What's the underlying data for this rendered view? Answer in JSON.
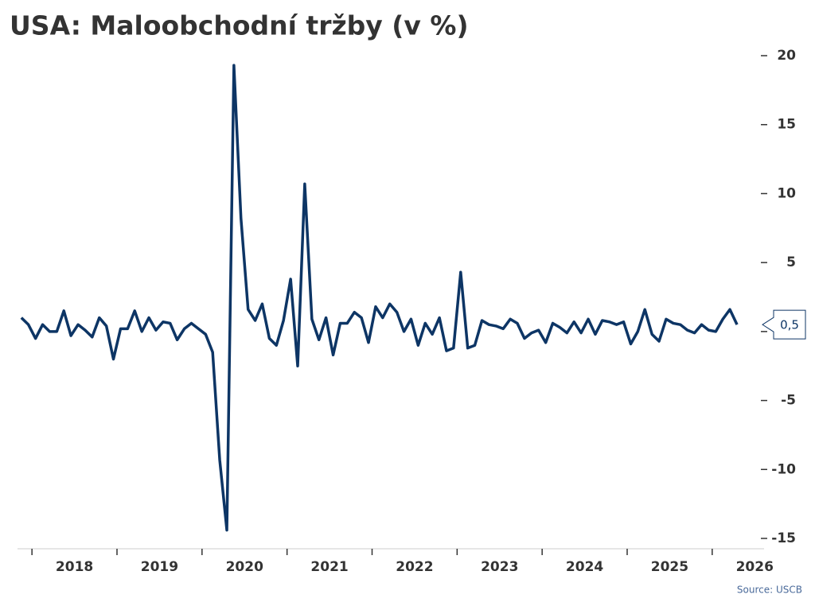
{
  "chart_data": {
    "type": "line",
    "title": "USA: Maloobchodní tržby (v %)",
    "source": "Source: USCB",
    "x": [
      2017.875,
      2017.958,
      2018.042,
      2018.125,
      2018.208,
      2018.292,
      2018.375,
      2018.458,
      2018.542,
      2018.625,
      2018.708,
      2018.792,
      2018.875,
      2018.958,
      2019.042,
      2019.125,
      2019.208,
      2019.292,
      2019.375,
      2019.458,
      2019.542,
      2019.625,
      2019.708,
      2019.792,
      2019.875,
      2019.958,
      2020.042,
      2020.125,
      2020.208,
      2020.292,
      2020.375,
      2020.458,
      2020.542,
      2020.625,
      2020.708,
      2020.792,
      2020.875,
      2020.958,
      2021.042,
      2021.125,
      2021.208,
      2021.292,
      2021.375,
      2021.458,
      2021.542,
      2021.625,
      2021.708,
      2021.792,
      2021.875,
      2021.958,
      2022.042,
      2022.125,
      2022.208,
      2022.292,
      2022.375,
      2022.458,
      2022.542,
      2022.625,
      2022.708,
      2022.792,
      2022.875,
      2022.958,
      2023.042,
      2023.125,
      2023.208,
      2023.292,
      2023.375,
      2023.458,
      2023.542,
      2023.625,
      2023.708,
      2023.792,
      2023.875,
      2023.958,
      2024.042,
      2024.125,
      2024.208,
      2024.292,
      2024.375,
      2024.458,
      2024.542,
      2024.625,
      2024.708,
      2024.792,
      2024.875,
      2024.958,
      2025.042,
      2025.125,
      2025.208,
      2025.292,
      2025.375,
      2025.458,
      2025.542,
      2025.625,
      2025.708,
      2025.792,
      2025.875,
      2025.958,
      2026.042,
      2026.125,
      2026.208,
      2026.292
    ],
    "series": [
      {
        "color": "#0d3565",
        "values": [
          1.0,
          0.5,
          -0.5,
          0.5,
          0,
          0,
          1.5,
          -0.3,
          0.5,
          0.1,
          -0.4,
          1.0,
          0.4,
          -2.0,
          0.2,
          0.2,
          1.5,
          0,
          1.0,
          0.1,
          0.7,
          0.6,
          -0.6,
          0.2,
          0.6,
          0.2,
          -0.2,
          -1.5,
          -9.3,
          -14.4,
          19.3,
          8.2,
          1.6,
          0.8,
          2.0,
          -0.5,
          -1.0,
          0.8,
          3.8,
          -2.5,
          10.7,
          0.9,
          -0.6,
          1.0,
          -1.7,
          0.6,
          0.6,
          1.4,
          1.0,
          -0.8,
          1.8,
          1.0,
          2.0,
          1.4,
          0,
          0.9,
          -1.0,
          0.6,
          -0.2,
          1.0,
          -1.4,
          -1.2,
          4.3,
          -1.2,
          -1.0,
          0.8,
          0.5,
          0.4,
          0.2,
          0.9,
          0.6,
          -0.5,
          -0.1,
          0.1,
          -0.8,
          0.6,
          0.3,
          -0.1,
          0.7,
          -0.1,
          0.9,
          -0.2,
          0.8,
          0.7,
          0.5,
          0.7,
          -0.9,
          0,
          1.6,
          -0.2,
          -0.7,
          0.9,
          0.6,
          0.5,
          0.1,
          -0.1,
          0.5,
          0.1,
          0,
          0.9,
          1.6,
          0.5
        ],
        "value_labels": [
          null,
          null,
          null,
          null,
          null,
          null,
          null,
          null,
          null,
          null,
          null,
          null,
          null,
          null,
          null,
          null,
          null,
          null,
          null,
          null,
          null,
          null,
          null,
          null,
          null,
          null,
          null,
          null,
          null,
          null,
          null,
          null,
          null,
          null,
          null,
          null,
          null,
          null,
          null,
          null,
          null,
          null,
          null,
          null,
          null,
          null,
          null,
          null,
          null,
          null,
          null,
          null,
          null,
          null,
          null,
          null,
          null,
          null,
          null,
          null,
          null,
          null,
          null,
          null,
          null,
          null,
          null,
          null,
          null,
          null,
          null,
          null,
          null,
          null,
          null,
          null,
          null,
          null,
          null,
          null,
          null,
          null,
          null,
          null,
          null,
          null,
          null,
          null,
          null,
          null,
          null,
          null,
          null,
          null,
          null,
          null,
          null,
          null,
          null,
          null,
          null,
          "0,5"
        ]
      }
    ],
    "xlim": [
      2017.83,
      2026.61
    ],
    "xticks": [
      2018,
      2019,
      2020,
      2021,
      2022,
      2023,
      2024,
      2025,
      2026
    ],
    "ylim": [
      -15.75,
      20.6
    ],
    "yticks": [
      -15,
      -10,
      -5,
      0,
      5,
      10,
      15,
      20
    ],
    "y_axis_side": "right",
    "grid": false
  }
}
